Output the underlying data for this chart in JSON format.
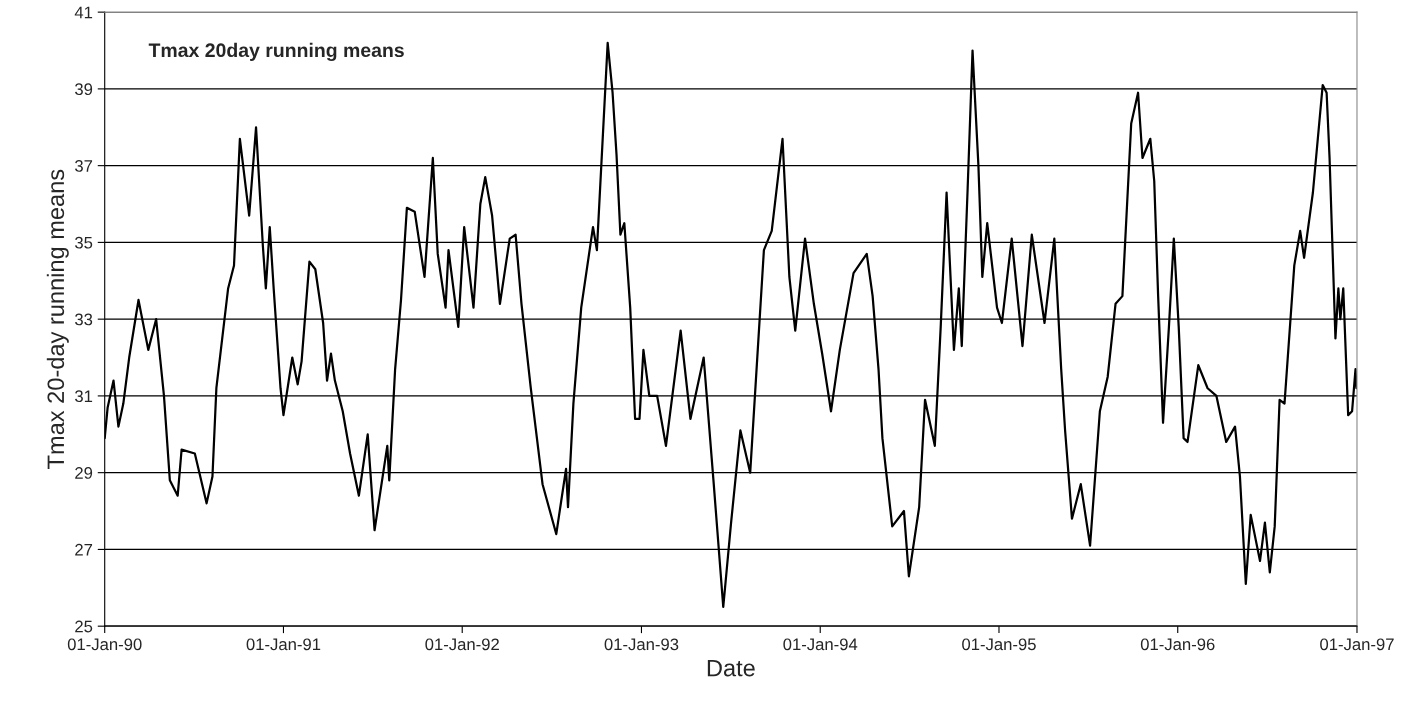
{
  "chart_data": {
    "type": "line",
    "title": "Tmax 20day running means",
    "xlabel": "Date",
    "ylabel": "Tmax 20-day running means",
    "xlim": [
      "1990-01-01",
      "1997-01-01"
    ],
    "xticks": [
      {
        "value": "1990-01-01",
        "label": "01-Jan-90"
      },
      {
        "value": "1991-01-01",
        "label": "01-Jan-91"
      },
      {
        "value": "1992-01-01",
        "label": "01-Jan-92"
      },
      {
        "value": "1993-01-01",
        "label": "01-Jan-93"
      },
      {
        "value": "1994-01-01",
        "label": "01-Jan-94"
      },
      {
        "value": "1995-01-01",
        "label": "01-Jan-95"
      },
      {
        "value": "1996-01-01",
        "label": "01-Jan-96"
      },
      {
        "value": "1997-01-01",
        "label": "01-Jan-97"
      }
    ],
    "ylim": [
      25,
      41
    ],
    "yticks": [
      25,
      27,
      29,
      31,
      33,
      35,
      37,
      39,
      41
    ],
    "grid": "y",
    "legend": false,
    "marker": "none",
    "line_style": "solid",
    "series": [
      {
        "color": "#000000",
        "x": [
          "1990-01-01",
          "1990-01-07",
          "1990-01-19",
          "1990-01-29",
          "1990-02-08",
          "1990-02-20",
          "1990-03-11",
          "1990-03-31",
          "1990-04-16",
          "1990-05-02",
          "1990-05-14",
          "1990-05-30",
          "1990-06-07",
          "1990-07-04",
          "1990-07-28",
          "1990-08-09",
          "1990-08-17",
          "1990-09-10",
          "1990-09-22",
          "1990-10-04",
          "1990-10-23",
          "1990-11-06",
          "1990-11-20",
          "1990-11-26",
          "1990-12-04",
          "1990-12-12",
          "1990-12-26",
          "1991-01-01",
          "1991-01-19",
          "1991-01-30",
          "1991-02-07",
          "1991-02-23",
          "1991-03-07",
          "1991-03-23",
          "1991-03-31",
          "1991-04-08",
          "1991-04-16",
          "1991-05-02",
          "1991-05-17",
          "1991-06-04",
          "1991-06-22",
          "1991-07-06",
          "1991-08-01",
          "1991-08-05",
          "1991-08-17",
          "1991-08-29",
          "1991-09-10",
          "1991-09-26",
          "1991-10-16",
          "1991-11-02",
          "1991-11-12",
          "1991-11-28",
          "1991-12-04",
          "1991-12-24",
          "1992-01-05",
          "1992-01-24",
          "1992-02-07",
          "1992-02-17",
          "1992-03-02",
          "1992-03-18",
          "1992-04-07",
          "1992-04-19",
          "1992-05-01",
          "1992-05-20",
          "1992-06-13",
          "1992-07-11",
          "1992-07-31",
          "1992-08-04",
          "1992-08-15",
          "1992-08-31",
          "1992-09-24",
          "1992-10-02",
          "1992-10-24",
          "1992-11-03",
          "1992-11-11",
          "1992-11-19",
          "1992-11-27",
          "1992-12-09",
          "1992-12-19",
          "1992-12-28",
          "1993-01-05",
          "1993-01-17",
          "1993-02-02",
          "1993-02-20",
          "1993-03-22",
          "1993-04-11",
          "1993-05-08",
          "1993-05-28",
          "1993-06-17",
          "1993-07-03",
          "1993-07-22",
          "1993-08-11",
          "1993-09-08",
          "1993-09-24",
          "1993-10-16",
          "1993-10-30",
          "1993-11-11",
          "1993-12-01",
          "1993-12-19",
          "1994-01-05",
          "1994-01-23",
          "1994-02-10",
          "1994-03-10",
          "1994-04-06",
          "1994-04-18",
          "1994-04-30",
          "1994-05-08",
          "1994-05-28",
          "1994-06-21",
          "1994-07-01",
          "1994-07-22",
          "1994-08-03",
          "1994-08-23",
          "1994-09-04",
          "1994-09-16",
          "1994-10-01",
          "1994-10-11",
          "1994-10-17",
          "1994-10-29",
          "1994-11-08",
          "1994-11-20",
          "1994-11-28",
          "1994-12-08",
          "1994-12-28",
          "1995-01-07",
          "1995-01-27",
          "1995-02-18",
          "1995-03-09",
          "1995-04-04",
          "1995-04-24",
          "1995-05-08",
          "1995-05-16",
          "1995-05-30",
          "1995-06-17",
          "1995-07-06",
          "1995-07-26",
          "1995-08-11",
          "1995-08-27",
          "1995-09-10",
          "1995-09-28",
          "1995-10-12",
          "1995-10-21",
          "1995-11-06",
          "1995-11-14",
          "1995-11-22",
          "1995-12-02",
          "1995-12-14",
          "1995-12-24",
          "1996-01-03",
          "1996-01-13",
          "1996-01-21",
          "1996-02-12",
          "1996-03-02",
          "1996-03-20",
          "1996-04-09",
          "1996-04-27",
          "1996-05-07",
          "1996-05-19",
          "1996-05-29",
          "1996-06-17",
          "1996-06-27",
          "1996-07-07",
          "1996-07-17",
          "1996-07-27",
          "1996-08-06",
          "1996-08-26",
          "1996-09-07",
          "1996-09-15",
          "1996-10-03",
          "1996-10-23",
          "1996-10-31",
          "1996-11-06",
          "1996-11-18",
          "1996-11-24",
          "1996-11-28",
          "1996-12-04",
          "1996-12-14",
          "1996-12-22",
          "1996-12-29",
          "1996-12-31"
        ],
        "values": [
          29.9,
          30.7,
          31.4,
          30.2,
          30.8,
          32.0,
          33.5,
          32.2,
          33.0,
          31.0,
          28.8,
          28.4,
          29.6,
          29.5,
          28.2,
          28.9,
          31.2,
          33.8,
          34.4,
          37.7,
          35.7,
          38.0,
          34.9,
          33.8,
          35.4,
          33.8,
          31.2,
          30.5,
          32.0,
          31.3,
          31.9,
          34.5,
          34.3,
          32.9,
          31.4,
          32.1,
          31.4,
          30.6,
          29.5,
          28.4,
          30.0,
          27.5,
          29.7,
          28.8,
          31.7,
          33.5,
          35.9,
          35.8,
          34.1,
          37.2,
          34.7,
          33.3,
          34.8,
          32.8,
          35.4,
          33.3,
          36.0,
          36.7,
          35.7,
          33.4,
          35.1,
          35.2,
          33.4,
          31.2,
          28.7,
          27.4,
          29.1,
          28.1,
          30.8,
          33.3,
          35.4,
          34.8,
          40.2,
          38.9,
          37.3,
          35.2,
          35.5,
          33.3,
          30.4,
          30.4,
          32.2,
          31.0,
          31.0,
          29.7,
          32.7,
          30.4,
          32.0,
          28.8,
          25.5,
          27.7,
          30.1,
          29.0,
          34.8,
          35.3,
          37.7,
          34.1,
          32.7,
          35.1,
          33.4,
          32.1,
          30.6,
          32.2,
          34.2,
          34.7,
          33.6,
          31.7,
          29.9,
          27.6,
          28.0,
          26.3,
          28.1,
          30.9,
          29.7,
          32.8,
          36.3,
          32.2,
          33.8,
          32.3,
          36.4,
          40.0,
          37.0,
          34.1,
          35.5,
          33.3,
          32.9,
          35.1,
          32.3,
          35.2,
          32.9,
          35.1,
          31.7,
          30.1,
          27.8,
          28.7,
          27.1,
          30.6,
          31.5,
          33.4,
          33.6,
          38.1,
          38.9,
          37.2,
          37.7,
          36.6,
          33.6,
          30.3,
          32.8,
          35.1,
          32.8,
          29.9,
          29.8,
          31.8,
          31.2,
          31.0,
          29.8,
          30.2,
          28.9,
          26.1,
          27.9,
          26.7,
          27.7,
          26.4,
          27.6,
          30.9,
          30.8,
          34.4,
          35.3,
          34.6,
          36.3,
          39.1,
          38.9,
          37.2,
          32.5,
          33.8,
          33.0,
          33.8,
          30.5,
          30.6,
          31.7,
          31.2
        ]
      }
    ]
  }
}
